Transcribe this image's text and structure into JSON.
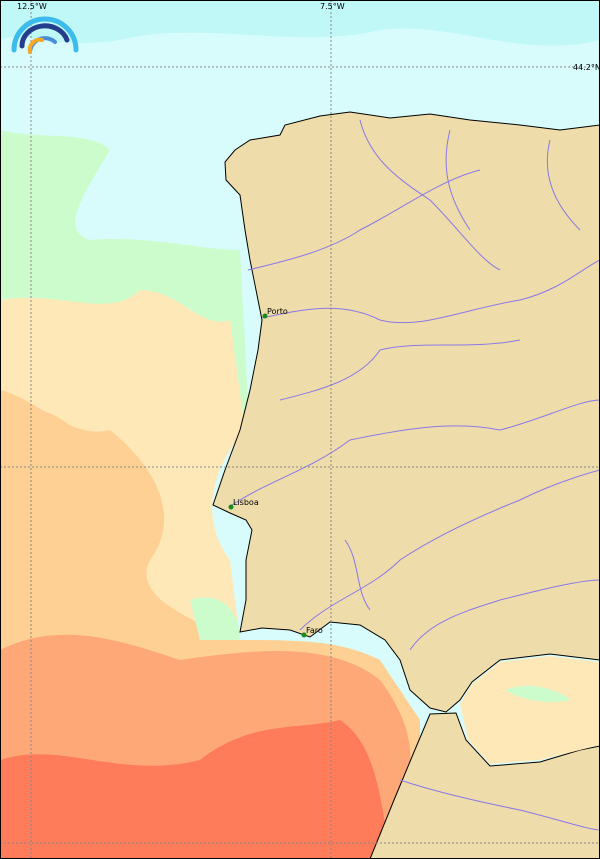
{
  "map": {
    "graticule": {
      "lon_labels": [
        "12.5°W",
        "7.5°W"
      ],
      "lat_labels": [
        "44.2°N"
      ]
    },
    "cities": [
      {
        "name": "Porto"
      },
      {
        "name": "Lisboa"
      },
      {
        "name": "Faro"
      }
    ],
    "colors": {
      "land": "#eedcaa",
      "rivers": "#8a78e8",
      "sea_coldest": "#d8fcfc",
      "sea_cool": "#ccfccc",
      "sea_mild": "#fee8b8",
      "sea_warm": "#fed094",
      "sea_hot": "#fea878",
      "sea_hottest": "#fe7c5a",
      "city_marker": "#1a8a1a"
    },
    "logo": {
      "icon": "rainbow-arcs-logo-icon"
    }
  }
}
